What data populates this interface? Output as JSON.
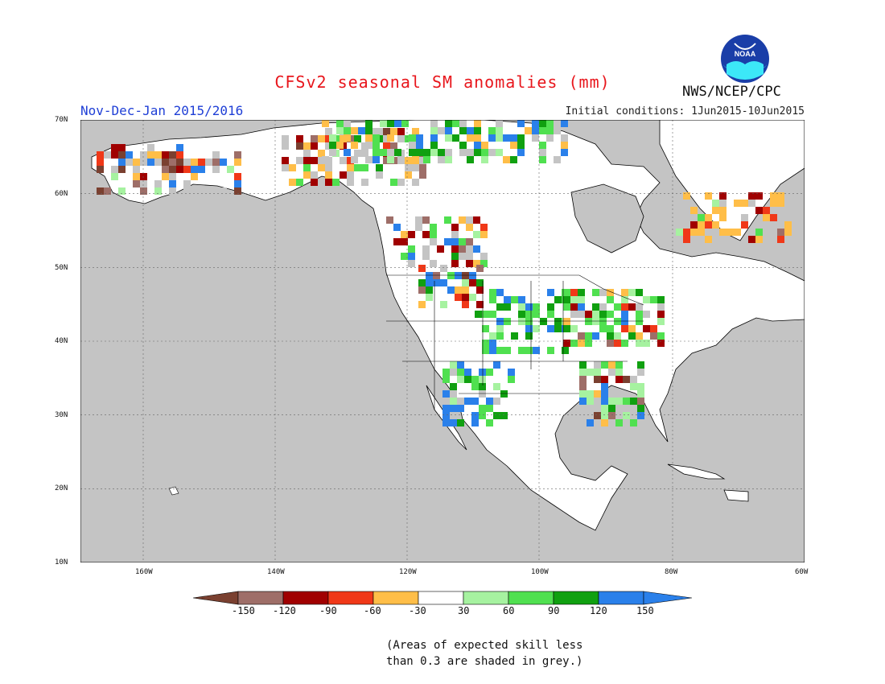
{
  "header": {
    "title": "CFSv2 seasonal SM anomalies (mm)",
    "period": "Nov-Dec-Jan 2015/2016",
    "initial_conditions": "Initial conditions: 1Jun2015-10Jun2015",
    "agency": "NWS/NCEP/CPC",
    "logo_text": "NOAA"
  },
  "map": {
    "lat_labels": [
      "70N",
      "60N",
      "50N",
      "40N",
      "30N",
      "20N",
      "10N"
    ],
    "lon_labels": [
      "160W",
      "140W",
      "120W",
      "100W",
      "80W",
      "60W"
    ]
  },
  "legend": {
    "labels": [
      "-150",
      "-120",
      "-90",
      "-60",
      "-30",
      "30",
      "60",
      "90",
      "120",
      "150"
    ],
    "colors": [
      "#7a4030",
      "#9e6e68",
      "#a00000",
      "#f03818",
      "#ffbe48",
      "#ffffff",
      "#a6f2a0",
      "#50e050",
      "#10a010",
      "#2a80ea",
      "#2a80ea"
    ]
  },
  "note": {
    "line1": "(Areas of expected skill less",
    "line2": "than 0.3 are shaded in grey.)"
  },
  "colors": {
    "grey_low_skill": "#c4c4c4",
    "title": "#e8161c",
    "period": "#1f3fd6"
  }
}
